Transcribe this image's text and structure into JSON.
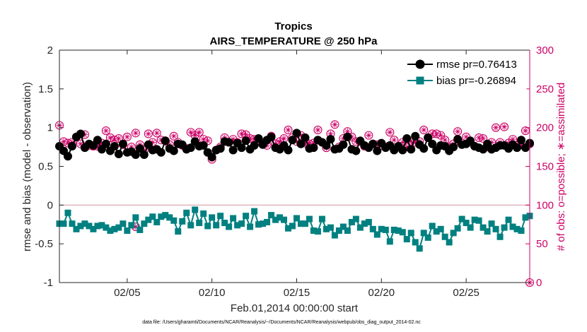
{
  "chart_data": {
    "type": "line",
    "title": "Tropics",
    "subtitle": "AIRS_TEMPERATURE @ 250 hPa",
    "xlabel": "Feb.01,2014 00:00:00 start",
    "ylabel_left": "rmse and bias (model - observation)",
    "ylabel_right": "# of obs: o=possible; ∗=assimilated",
    "xlim": [
      1,
      28.75
    ],
    "ylim_left": [
      -1,
      2
    ],
    "ylim_right": [
      0,
      300
    ],
    "x_tick_values": [
      5,
      10,
      15,
      20,
      25
    ],
    "x_tick_labels": [
      "02/05",
      "02/10",
      "02/15",
      "02/20",
      "02/25"
    ],
    "y_left_ticks": [
      "-1",
      "-0.5",
      "0",
      "0.5",
      "1",
      "1.5",
      "2"
    ],
    "y_left_tick_values": [
      -1,
      -0.5,
      0,
      0.5,
      1,
      1.5,
      2
    ],
    "y_right_ticks": [
      "0",
      "50",
      "100",
      "150",
      "200",
      "250",
      "300"
    ],
    "y_right_tick_values": [
      0,
      50,
      100,
      150,
      200,
      250,
      300
    ],
    "legend": {
      "position": "top-right",
      "entries": [
        "rmse pr=0.76413",
        "bias pr=-0.26894"
      ]
    },
    "footnote": "data file: /Users/gharamti/Documents/NCAR/Reanalysis/~/Documents/NCAR/Reanalysis/webpub/obs_diag_output_2014-02.nc",
    "colors": {
      "rmse": "#000000",
      "bias": "#008080",
      "obs": "#cc0066",
      "zero_line": "#d9a0a8",
      "axis": "#262626",
      "right_axis": "#cc0066"
    },
    "x": [
      1.0,
      1.25,
      1.5,
      1.75,
      2.0,
      2.25,
      2.5,
      2.75,
      3.0,
      3.25,
      3.5,
      3.75,
      4.0,
      4.25,
      4.5,
      4.75,
      5.0,
      5.25,
      5.5,
      5.75,
      6.0,
      6.25,
      6.5,
      6.75,
      7.0,
      7.25,
      7.5,
      7.75,
      8.0,
      8.25,
      8.5,
      8.75,
      9.0,
      9.25,
      9.5,
      9.75,
      10.0,
      10.25,
      10.5,
      10.75,
      11.0,
      11.25,
      11.5,
      11.75,
      12.0,
      12.25,
      12.5,
      12.75,
      13.0,
      13.25,
      13.5,
      13.75,
      14.0,
      14.25,
      14.5,
      14.75,
      15.0,
      15.25,
      15.5,
      15.75,
      16.0,
      16.25,
      16.5,
      16.75,
      17.0,
      17.25,
      17.5,
      17.75,
      18.0,
      18.25,
      18.5,
      18.75,
      19.0,
      19.25,
      19.5,
      19.75,
      20.0,
      20.25,
      20.5,
      20.75,
      21.0,
      21.25,
      21.5,
      21.75,
      22.0,
      22.25,
      22.5,
      22.75,
      23.0,
      23.25,
      23.5,
      23.75,
      24.0,
      24.25,
      24.5,
      24.75,
      25.0,
      25.25,
      25.5,
      25.75,
      26.0,
      26.25,
      26.5,
      26.75,
      27.0,
      27.25,
      27.5,
      27.75,
      28.0,
      28.25,
      28.5,
      28.75
    ],
    "series": [
      {
        "name": "rmse",
        "axis": "left",
        "marker": "circle",
        "values": [
          0.76,
          0.7,
          0.63,
          0.76,
          0.88,
          0.92,
          0.74,
          0.79,
          0.77,
          0.84,
          0.72,
          0.79,
          0.7,
          0.76,
          0.66,
          0.79,
          0.68,
          0.69,
          0.65,
          0.73,
          0.65,
          0.78,
          0.71,
          0.72,
          0.68,
          0.83,
          0.73,
          0.7,
          0.79,
          0.78,
          0.72,
          0.74,
          0.82,
          0.76,
          0.77,
          0.68,
          0.62,
          0.71,
          0.73,
          0.82,
          0.81,
          0.71,
          0.8,
          0.74,
          0.83,
          0.72,
          0.77,
          0.86,
          0.78,
          0.84,
          0.88,
          0.74,
          0.72,
          0.77,
          0.71,
          0.84,
          0.93,
          0.79,
          0.87,
          0.73,
          0.74,
          0.84,
          0.81,
          0.77,
          0.85,
          0.72,
          0.73,
          0.78,
          0.88,
          0.72,
          0.7,
          0.83,
          0.77,
          0.74,
          0.79,
          0.7,
          0.8,
          0.74,
          0.77,
          0.71,
          0.76,
          0.71,
          0.86,
          0.72,
          0.89,
          0.78,
          0.73,
          0.87,
          0.79,
          0.71,
          0.77,
          0.76,
          0.7,
          0.75,
          0.85,
          0.78,
          0.79,
          0.83,
          0.76,
          0.74,
          0.72,
          0.79,
          0.72,
          0.74,
          0.77,
          0.77,
          0.73,
          0.78,
          0.74,
          0.84,
          0.74,
          0.8
        ]
      },
      {
        "name": "bias",
        "axis": "left",
        "marker": "square",
        "values": [
          -0.24,
          -0.24,
          -0.1,
          -0.24,
          -0.31,
          -0.27,
          -0.24,
          -0.27,
          -0.31,
          -0.27,
          -0.26,
          -0.29,
          -0.33,
          -0.31,
          -0.29,
          -0.24,
          -0.33,
          -0.26,
          -0.16,
          -0.32,
          -0.24,
          -0.19,
          -0.15,
          -0.22,
          -0.15,
          -0.13,
          -0.16,
          -0.2,
          -0.34,
          -0.21,
          -0.1,
          -0.26,
          -0.06,
          -0.23,
          -0.11,
          -0.27,
          -0.16,
          -0.26,
          -0.14,
          -0.23,
          -0.28,
          -0.17,
          -0.26,
          -0.24,
          -0.14,
          -0.28,
          -0.08,
          -0.25,
          -0.24,
          -0.22,
          -0.13,
          -0.19,
          -0.16,
          -0.19,
          -0.3,
          -0.27,
          -0.17,
          -0.24,
          -0.24,
          -0.18,
          -0.33,
          -0.34,
          -0.18,
          -0.31,
          -0.29,
          -0.39,
          -0.33,
          -0.28,
          -0.33,
          -0.22,
          -0.18,
          -0.29,
          -0.24,
          -0.22,
          -0.31,
          -0.38,
          -0.31,
          -0.32,
          -0.47,
          -0.32,
          -0.33,
          -0.35,
          -0.44,
          -0.36,
          -0.48,
          -0.56,
          -0.36,
          -0.42,
          -0.27,
          -0.34,
          -0.31,
          -0.41,
          -0.48,
          -0.36,
          -0.3,
          -0.18,
          -0.23,
          -0.29,
          -0.19,
          -0.2,
          -0.29,
          -0.34,
          -0.24,
          -0.31,
          -0.41,
          -0.29,
          -0.19,
          -0.28,
          -0.31,
          -0.33,
          -0.16,
          -0.14
        ]
      },
      {
        "name": "obs_possible",
        "axis": "right",
        "marker": "open-circle",
        "values": [
          203,
          182,
          180,
          181,
          188,
          179,
          191,
          177,
          176,
          176,
          180,
          196,
          187,
          184,
          186,
          178,
          188,
          175,
          193,
          178,
          171,
          192,
          181,
          193,
          184,
          183,
          178,
          189,
          181,
          177,
          173,
          194,
          190,
          194,
          185,
          183,
          159,
          171,
          175,
          187,
          181,
          185,
          181,
          192,
          191,
          186,
          185,
          182,
          180,
          177,
          189,
          179,
          182,
          186,
          197,
          187,
          182,
          190,
          180,
          179,
          180,
          197,
          181,
          174,
          192,
          204,
          175,
          186,
          195,
          188,
          182,
          182,
          176,
          190,
          179,
          178,
          177,
          175,
          194,
          184,
          175,
          181,
          175,
          182,
          181,
          182,
          197,
          187,
          192,
          192,
          190,
          184,
          175,
          179,
          195,
          180,
          188,
          181,
          176,
          187,
          186,
          175,
          181,
          200,
          181,
          201,
          180,
          185,
          177,
          178,
          196,
          179
        ]
      },
      {
        "name": "obs_assimilated",
        "axis": "right",
        "marker": "asterisk",
        "values": [
          203,
          182,
          180,
          181,
          188,
          179,
          191,
          177,
          176,
          176,
          180,
          196,
          187,
          184,
          186,
          178,
          188,
          175,
          193,
          178,
          171,
          192,
          181,
          193,
          184,
          183,
          178,
          189,
          181,
          177,
          173,
          194,
          190,
          194,
          185,
          183,
          159,
          171,
          175,
          187,
          181,
          185,
          181,
          192,
          191,
          186,
          185,
          182,
          180,
          177,
          189,
          179,
          182,
          186,
          197,
          187,
          182,
          190,
          180,
          179,
          180,
          197,
          181,
          174,
          192,
          204,
          175,
          186,
          195,
          188,
          182,
          182,
          176,
          190,
          179,
          178,
          177,
          175,
          194,
          184,
          175,
          181,
          175,
          182,
          181,
          182,
          197,
          187,
          192,
          192,
          190,
          184,
          175,
          179,
          195,
          180,
          188,
          181,
          176,
          187,
          186,
          175,
          181,
          200,
          181,
          201,
          180,
          185,
          177,
          178,
          196,
          179
        ]
      }
    ],
    "extra_points": [
      {
        "series": "obs_possible",
        "x": 5.5,
        "y": 72
      },
      {
        "series": "obs_possible",
        "x": 28.75,
        "y": 0
      }
    ]
  }
}
